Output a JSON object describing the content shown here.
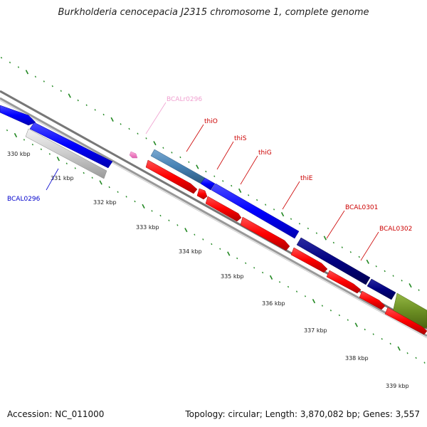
{
  "title": "Burkholderia cenocepacia J2315 chromosome 1, complete genome",
  "footer": {
    "accession": "Accession: NC_011000",
    "summary": "Topology: circular; Length: 3,870,082 bp; Genes: 3,557"
  },
  "map": {
    "tick_labels": [
      "330 kbp",
      "331 kbp",
      "332 kbp",
      "333 kbp",
      "334 kbp",
      "335 kbp",
      "336 kbp",
      "337 kbp",
      "338 kbp",
      "339 kbp"
    ],
    "gene_labels": [
      {
        "text": "BCALr0296",
        "color": "#f0a0d0"
      },
      {
        "text": "thiO",
        "color": "#cc0000"
      },
      {
        "text": "thiS",
        "color": "#cc0000"
      },
      {
        "text": "thiG",
        "color": "#cc0000"
      },
      {
        "text": "thiE",
        "color": "#cc0000"
      },
      {
        "text": "BCAL0301",
        "color": "#cc0000"
      },
      {
        "text": "BCAL0302",
        "color": "#cc0000"
      },
      {
        "text": "BCAL0296",
        "color": "#0000cc"
      }
    ],
    "colors": {
      "backbone": "#888888",
      "tick": "#228822",
      "cds_red": "#ff0000",
      "cds_blue": "#0000ff",
      "cds_navy": "#000080",
      "cds_steel": "#4682b4",
      "cds_olive": "#6b8e23",
      "cds_grey": "#cccccc",
      "rna_pink": "#f080c0"
    }
  }
}
